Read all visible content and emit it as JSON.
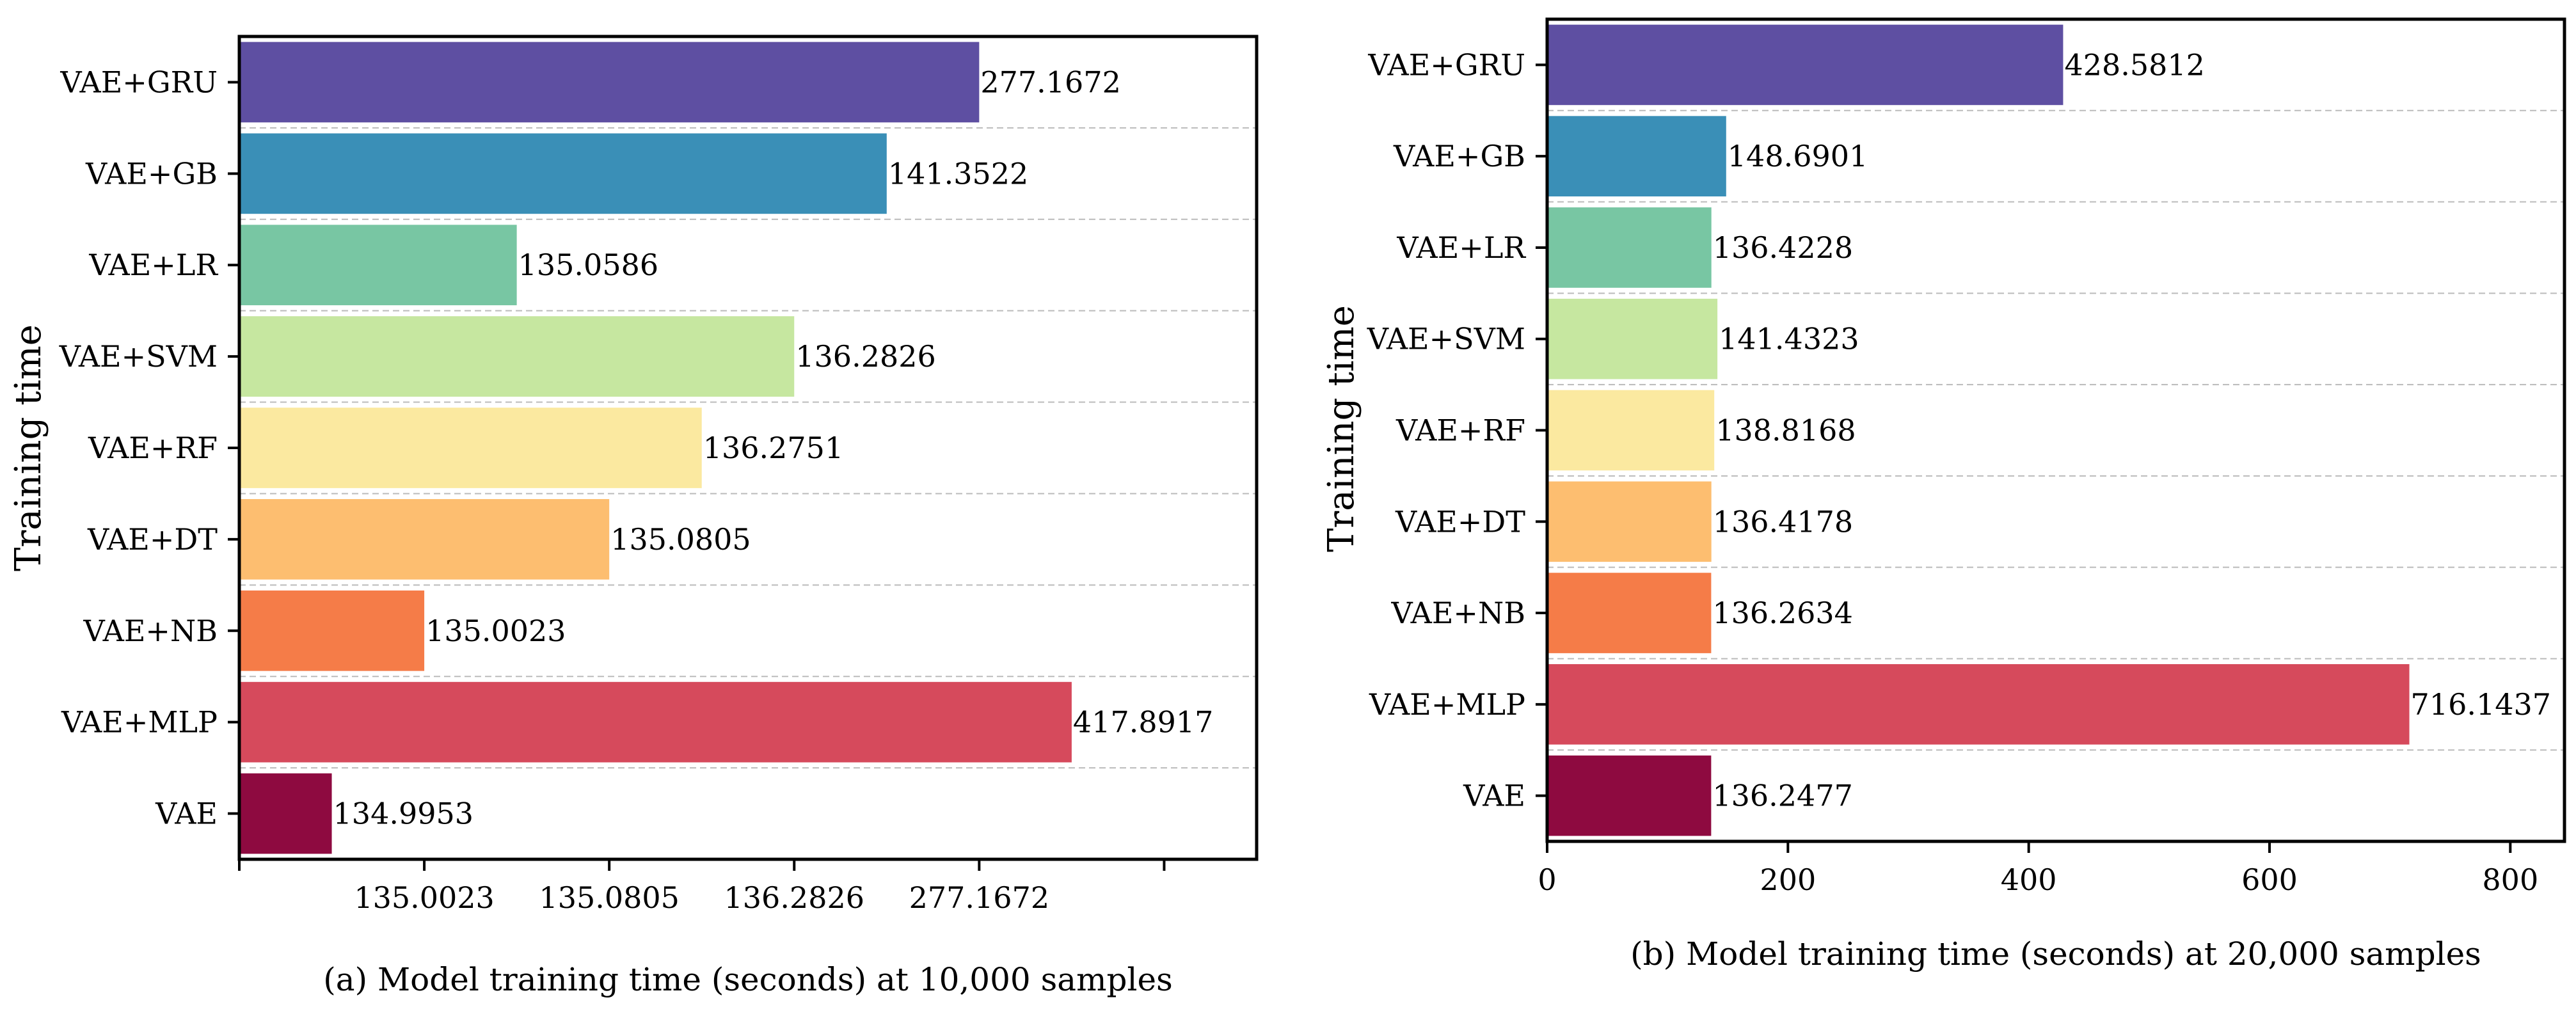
{
  "chart_data": [
    {
      "type": "bar",
      "orientation": "horizontal",
      "categories": [
        "VAE+GRU",
        "VAE+GB",
        "VAE+LR",
        "VAE+SVM",
        "VAE+RF",
        "VAE+DT",
        "VAE+NB",
        "VAE+MLP",
        "VAE"
      ],
      "values": [
        277.1672,
        141.3522,
        135.0586,
        136.2826,
        136.2751,
        135.0805,
        135.0023,
        417.8917,
        134.9953
      ],
      "value_labels": [
        "277.1672",
        "141.3522",
        "135.0586",
        "136.2826",
        "136.2751",
        "135.0805",
        "135.0023",
        "417.8917",
        "134.9953"
      ],
      "bar_colors": [
        "#5e4fa2",
        "#3a8fb7",
        "#78c6a3",
        "#c6e7a0",
        "#fbe9a0",
        "#fdbe70",
        "#f57c48",
        "#d64a5c",
        "#8e0a40"
      ],
      "bar_lengths_in_ticks": [
        4,
        3.5,
        1.5,
        3,
        2.5,
        2,
        1,
        4.5,
        0.5
      ],
      "x_tick_labels": [
        "",
        "135.0023",
        "135.0805",
        "136.2826",
        "277.1672",
        ""
      ],
      "xlim_in_ticks": [
        0,
        5.5
      ],
      "title": "(a) Model training time (seconds) at 10,000 samples",
      "xlabel": "",
      "ylabel": "Training time",
      "grid": "horizontal dashed"
    },
    {
      "type": "bar",
      "orientation": "horizontal",
      "categories": [
        "VAE+GRU",
        "VAE+GB",
        "VAE+LR",
        "VAE+SVM",
        "VAE+RF",
        "VAE+DT",
        "VAE+NB",
        "VAE+MLP",
        "VAE"
      ],
      "values": [
        428.5812,
        148.6901,
        136.4228,
        141.4323,
        138.8168,
        136.4178,
        136.2634,
        716.1437,
        136.2477
      ],
      "value_labels": [
        "428.5812",
        "148.6901",
        "136.4228",
        "141.4323",
        "138.8168",
        "136.4178",
        "136.2634",
        "716.1437",
        "136.2477"
      ],
      "bar_colors": [
        "#5e4fa2",
        "#3a8fb7",
        "#78c6a3",
        "#c6e7a0",
        "#fbe9a0",
        "#fdbe70",
        "#f57c48",
        "#d64a5c",
        "#8e0a40"
      ],
      "x_ticks": [
        0,
        200,
        400,
        600,
        800
      ],
      "x_tick_labels": [
        "0",
        "200",
        "400",
        "600",
        "800"
      ],
      "xlim": [
        0,
        845
      ],
      "title": "(b) Model training time (seconds) at 20,000 samples",
      "xlabel": "",
      "ylabel": "Training time",
      "grid": "horizontal dashed"
    }
  ]
}
